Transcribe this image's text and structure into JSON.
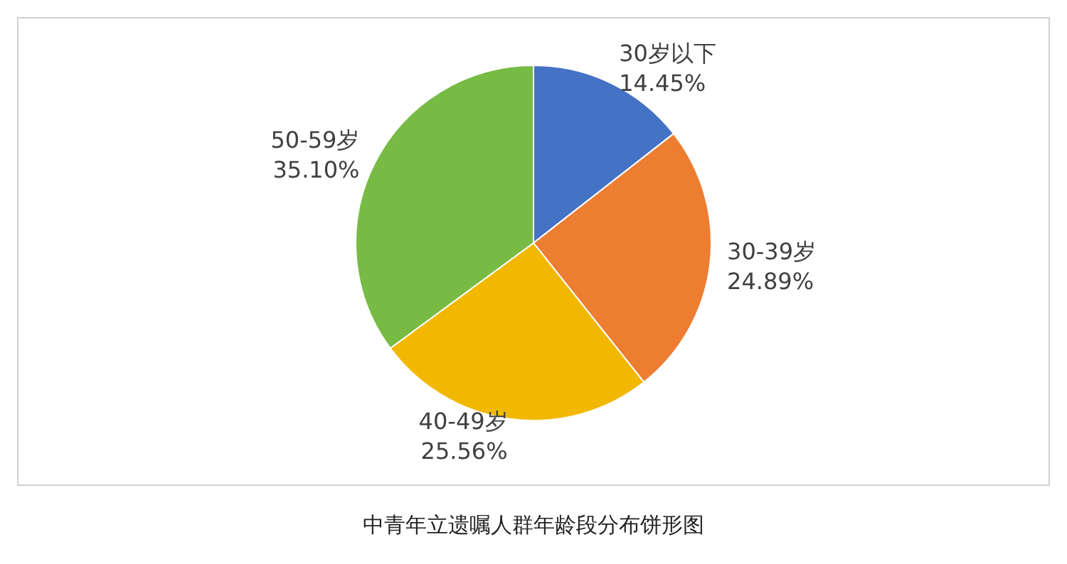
{
  "chart_data": {
    "type": "pie",
    "title": "中青年立遗嘱人群年龄段分布饼形图",
    "categories": [
      "30岁以下",
      "30-39岁",
      "40-49岁",
      "50-59岁"
    ],
    "values": [
      14.45,
      24.89,
      25.56,
      35.1
    ],
    "value_labels": [
      "14.45%",
      "24.89%",
      "25.56%",
      "35.10%"
    ],
    "colors": [
      "#4472c4",
      "#ed7d31",
      "#f2b800",
      "#78bb44"
    ],
    "legend": false
  }
}
